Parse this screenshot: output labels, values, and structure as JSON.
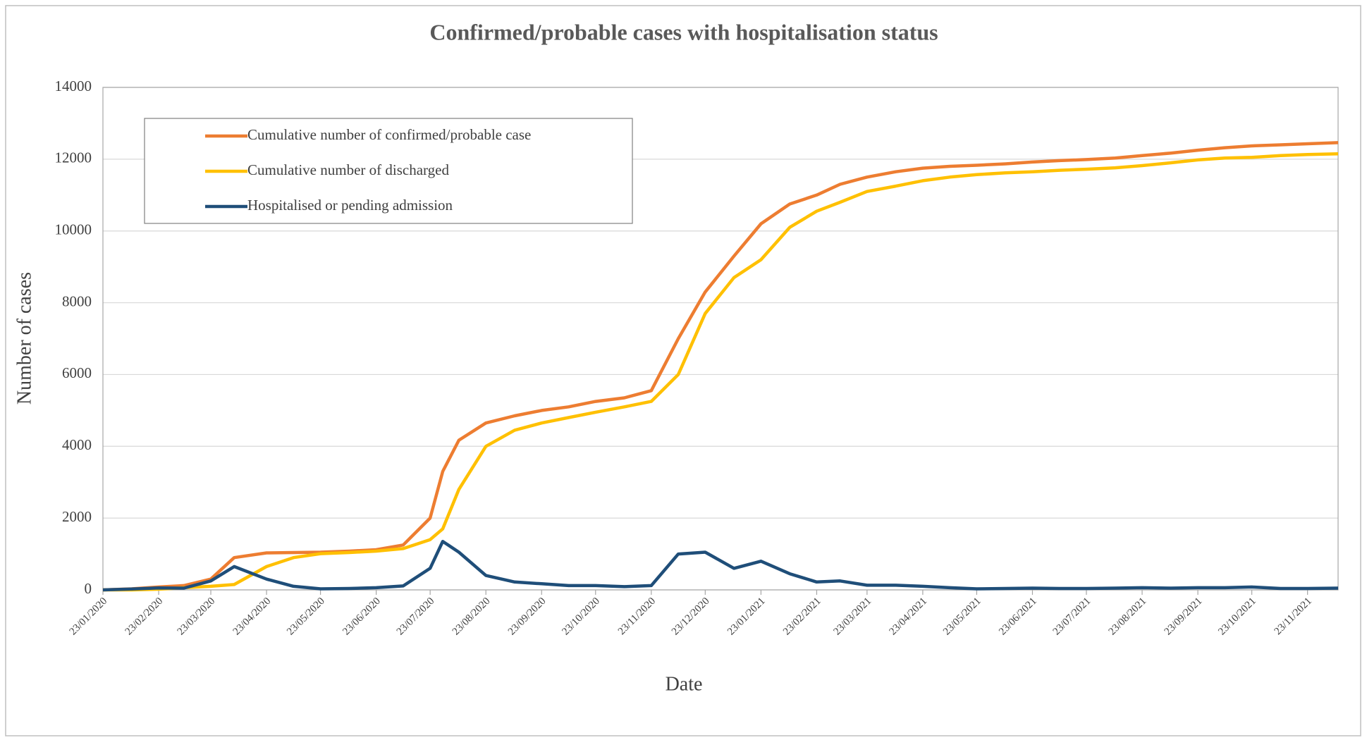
{
  "chart_data": {
    "type": "line",
    "title": "Confirmed/probable cases with hospitalisation status",
    "x_label": "Date",
    "y_label": "Number of cases",
    "x": [
      "23/01/2020",
      "08/02/2020",
      "23/02/2020",
      "08/03/2020",
      "23/03/2020",
      "05/04/2020",
      "23/04/2020",
      "08/05/2020",
      "23/05/2020",
      "08/06/2020",
      "23/06/2020",
      "08/07/2020",
      "23/07/2020",
      "30/07/2020",
      "08/08/2020",
      "23/08/2020",
      "08/09/2020",
      "23/09/2020",
      "08/10/2020",
      "23/10/2020",
      "08/11/2020",
      "23/11/2020",
      "08/12/2020",
      "23/12/2020",
      "08/01/2021",
      "23/01/2021",
      "08/02/2021",
      "23/02/2021",
      "08/03/2021",
      "23/03/2021",
      "08/04/2021",
      "23/04/2021",
      "08/05/2021",
      "23/05/2021",
      "08/06/2021",
      "23/06/2021",
      "08/07/2021",
      "23/07/2021",
      "08/08/2021",
      "23/08/2021",
      "08/09/2021",
      "23/09/2021",
      "08/10/2021",
      "23/10/2021",
      "08/11/2021",
      "23/11/2021",
      "10/12/2021"
    ],
    "series": [
      {
        "name": "Cumulative number of confirmed/probable case",
        "color": "#ed7d31",
        "values": [
          0,
          30,
          80,
          120,
          300,
          900,
          1030,
          1040,
          1050,
          1080,
          1120,
          1250,
          2000,
          3300,
          4170,
          4650,
          4850,
          5000,
          5100,
          5250,
          5350,
          5550,
          7000,
          8300,
          9300,
          10200,
          10750,
          11000,
          11300,
          11500,
          11650,
          11750,
          11800,
          11830,
          11870,
          11920,
          11960,
          11990,
          12030,
          12100,
          12170,
          12250,
          12320,
          12370,
          12400,
          12430,
          12460
        ]
      },
      {
        "name": "Cumulative number of discharged",
        "color": "#ffc000",
        "values": [
          0,
          0,
          20,
          60,
          100,
          150,
          650,
          900,
          1010,
          1040,
          1080,
          1150,
          1400,
          1700,
          2800,
          4000,
          4450,
          4650,
          4800,
          4950,
          5100,
          5250,
          6000,
          7700,
          8700,
          9200,
          10100,
          10550,
          10800,
          11100,
          11250,
          11400,
          11500,
          11570,
          11620,
          11650,
          11690,
          11720,
          11760,
          11820,
          11900,
          11980,
          12030,
          12050,
          12100,
          12130,
          12150
        ]
      },
      {
        "name": "Hospitalised or pending admission",
        "color": "#1f4e79",
        "values": [
          0,
          25,
          55,
          50,
          250,
          650,
          300,
          100,
          30,
          40,
          60,
          110,
          600,
          1350,
          1050,
          400,
          220,
          170,
          120,
          120,
          90,
          120,
          1000,
          1050,
          600,
          800,
          450,
          220,
          250,
          130,
          130,
          100,
          60,
          30,
          40,
          50,
          40,
          40,
          50,
          60,
          50,
          60,
          60,
          80,
          40,
          40,
          50
        ]
      }
    ],
    "xlim": [
      "23/01/2020",
      "10/12/2021"
    ],
    "xticks": [
      "23/01/2020",
      "23/02/2020",
      "23/03/2020",
      "23/04/2020",
      "23/05/2020",
      "23/06/2020",
      "23/07/2020",
      "23/08/2020",
      "23/09/2020",
      "23/10/2020",
      "23/11/2020",
      "23/12/2020",
      "23/01/2021",
      "23/02/2021",
      "23/03/2021",
      "23/04/2021",
      "23/05/2021",
      "23/06/2021",
      "23/07/2021",
      "23/08/2021",
      "23/09/2021",
      "23/10/2021",
      "23/11/2021"
    ],
    "ylim": [
      0,
      14000
    ],
    "yticks": [
      0,
      2000,
      4000,
      6000,
      8000,
      10000,
      12000,
      14000
    ],
    "grid": true
  }
}
